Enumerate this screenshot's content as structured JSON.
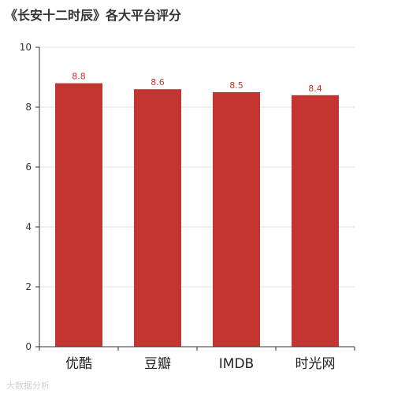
{
  "watermark": "大数据分析",
  "colors": {
    "bar": "#c23531",
    "grid": "#e0e0e0",
    "axis": "#333333",
    "label": "#c23531"
  },
  "chart_data": {
    "type": "bar",
    "title": "《长安十二时辰》各大平台评分",
    "categories": [
      "优酷",
      "豆瓣",
      "IMDB",
      "时光网"
    ],
    "values": [
      8.8,
      8.6,
      8.5,
      8.4
    ],
    "ylim": [
      0,
      10
    ],
    "yticks": [
      0,
      2,
      4,
      6,
      8,
      10
    ],
    "grid": true,
    "data_labels": true,
    "legend": "none"
  }
}
